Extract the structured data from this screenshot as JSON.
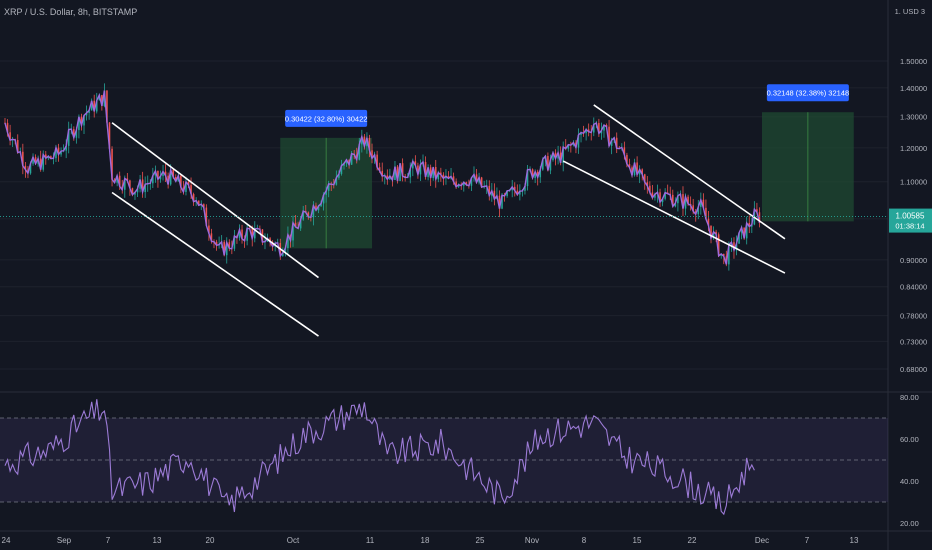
{
  "header": {
    "title": "XRP / U.S. Dollar, 8h, BITSTAMP"
  },
  "price_axis": {
    "currency": "USD",
    "currency_marker": "1. USD 3",
    "ticks": [
      "1.50000",
      "1.40000",
      "1.30000",
      "1.20000",
      "1.10000",
      "1.00000",
      "0.90000",
      "0.84000",
      "0.78000",
      "0.73000",
      "0.68000"
    ],
    "last_price": "1.00585",
    "countdown": "01:38:14"
  },
  "rsi_axis": {
    "ticks": [
      "80.00",
      "60.00",
      "40.00",
      "20.00"
    ]
  },
  "time_axis": {
    "ticks": [
      "24",
      "Sep",
      "7",
      "13",
      "20",
      "Oct",
      "11",
      "18",
      "25",
      "Nov",
      "8",
      "15",
      "22",
      "Dec",
      "7",
      "13"
    ]
  },
  "measurements": [
    {
      "label": "0.30422 (32.80%) 30422"
    },
    {
      "label": "0.32148 (32.38%) 32148"
    }
  ],
  "colors": {
    "background": "#131722",
    "up_candle": "#26a69a",
    "down_candle": "#ef5350",
    "moving_average": "#9c6ade",
    "rsi_line": "#9c7bd6",
    "trend_lines": "#ffffff",
    "measure_box": "#1f4a32",
    "label_bg": "#2962ff",
    "price_line": "#26a69a"
  },
  "chart_data": {
    "type": "candlestick",
    "symbol": "XRP / U.S. Dollar",
    "interval": "8h",
    "exchange": "BITSTAMP",
    "y_scale": "log",
    "ylim": [
      0.66,
      1.56
    ],
    "close_keypoints": [
      {
        "date": "2021-08-24",
        "close": 1.28
      },
      {
        "date": "2021-08-27",
        "close": 1.14
      },
      {
        "date": "2021-08-31",
        "close": 1.18
      },
      {
        "date": "2021-09-03",
        "close": 1.3
      },
      {
        "date": "2021-09-06",
        "close": 1.37
      },
      {
        "date": "2021-09-07",
        "close": 1.12
      },
      {
        "date": "2021-09-10",
        "close": 1.08
      },
      {
        "date": "2021-09-14",
        "close": 1.12
      },
      {
        "date": "2021-09-18",
        "close": 1.06
      },
      {
        "date": "2021-09-21",
        "close": 0.92
      },
      {
        "date": "2021-09-25",
        "close": 0.97
      },
      {
        "date": "2021-09-29",
        "close": 0.93
      },
      {
        "date": "2021-10-04",
        "close": 1.05
      },
      {
        "date": "2021-10-10",
        "close": 1.22
      },
      {
        "date": "2021-10-13",
        "close": 1.12
      },
      {
        "date": "2021-10-17",
        "close": 1.14
      },
      {
        "date": "2021-10-21",
        "close": 1.1
      },
      {
        "date": "2021-10-24",
        "close": 1.11
      },
      {
        "date": "2021-10-28",
        "close": 1.04
      },
      {
        "date": "2021-11-01",
        "close": 1.13
      },
      {
        "date": "2021-11-05",
        "close": 1.18
      },
      {
        "date": "2021-11-09",
        "close": 1.28
      },
      {
        "date": "2021-11-12",
        "close": 1.21
      },
      {
        "date": "2021-11-16",
        "close": 1.08
      },
      {
        "date": "2021-11-20",
        "close": 1.05
      },
      {
        "date": "2021-11-23",
        "close": 1.03
      },
      {
        "date": "2021-11-26",
        "close": 0.9
      },
      {
        "date": "2021-11-28",
        "close": 0.95
      },
      {
        "date": "2021-11-30",
        "close": 1.006
      }
    ],
    "measure_ranges": [
      {
        "from_date": "2021-09-29",
        "to_date": "2021-10-11",
        "low": 0.927,
        "high": 1.2313,
        "change": 0.30422,
        "percent": 32.8
      },
      {
        "from_date": "2021-12-01",
        "to_date": "2021-12-13",
        "low": 0.9936,
        "high": 1.3151,
        "change": 0.32148,
        "percent": 32.38
      }
    ],
    "trend_lines": [
      {
        "from": {
          "date": "2021-09-07",
          "price": 1.28
        },
        "to": {
          "date": "2021-10-04",
          "price": 0.86
        }
      },
      {
        "from": {
          "date": "2021-09-07",
          "price": 1.07
        },
        "to": {
          "date": "2021-10-04",
          "price": 0.74
        }
      },
      {
        "from": {
          "date": "2021-11-09",
          "price": 1.34
        },
        "to": {
          "date": "2021-12-04",
          "price": 0.95
        }
      },
      {
        "from": {
          "date": "2021-11-05",
          "price": 1.16
        },
        "to": {
          "date": "2021-12-04",
          "price": 0.87
        }
      }
    ],
    "rsi": {
      "ylim": [
        18,
        82
      ],
      "band": [
        30,
        70
      ],
      "mid": 50,
      "keypoints": [
        {
          "date": "2021-08-24",
          "value": 48
        },
        {
          "date": "2021-08-30",
          "value": 55
        },
        {
          "date": "2021-09-03",
          "value": 68
        },
        {
          "date": "2021-09-06",
          "value": 75
        },
        {
          "date": "2021-09-07",
          "value": 35
        },
        {
          "date": "2021-09-12",
          "value": 40
        },
        {
          "date": "2021-09-17",
          "value": 52
        },
        {
          "date": "2021-09-22",
          "value": 28
        },
        {
          "date": "2021-09-27",
          "value": 44
        },
        {
          "date": "2021-10-02",
          "value": 62
        },
        {
          "date": "2021-10-10",
          "value": 76
        },
        {
          "date": "2021-10-13",
          "value": 52
        },
        {
          "date": "2021-10-20",
          "value": 58
        },
        {
          "date": "2021-10-28",
          "value": 32
        },
        {
          "date": "2021-11-02",
          "value": 62
        },
        {
          "date": "2021-11-09",
          "value": 68
        },
        {
          "date": "2021-11-13",
          "value": 52
        },
        {
          "date": "2021-11-20",
          "value": 42
        },
        {
          "date": "2021-11-26",
          "value": 28
        },
        {
          "date": "2021-11-30",
          "value": 52
        }
      ]
    }
  }
}
